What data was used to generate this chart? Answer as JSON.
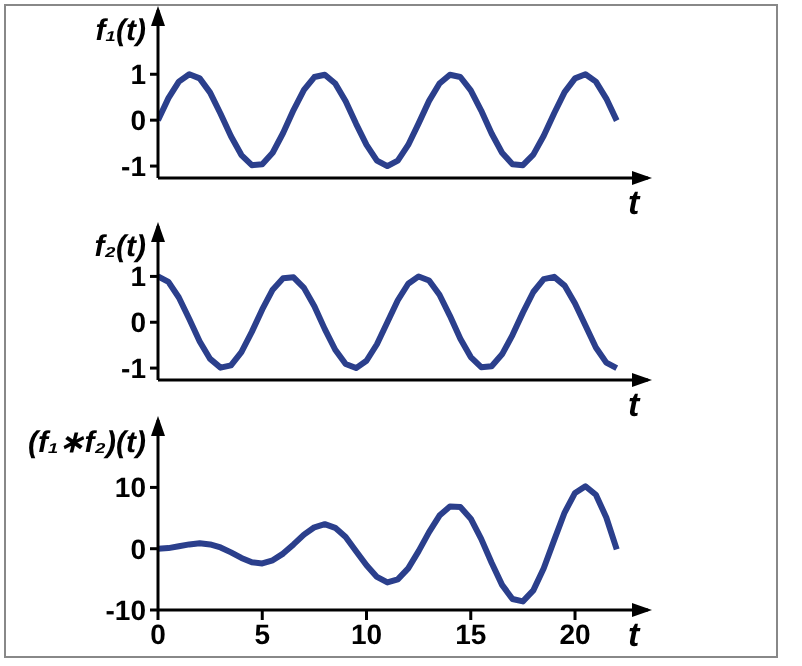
{
  "chart_data": [
    {
      "type": "line",
      "ylabel": "f₁(t)",
      "xlabel": "t",
      "tick_labels": "y",
      "marker": "none",
      "xlim": [
        0,
        23.5
      ],
      "xticks": [
        0,
        5,
        10,
        15,
        20
      ],
      "ylim": [
        -1.26,
        2.4
      ],
      "yticks": [
        -1,
        0,
        1
      ],
      "x": [
        0,
        0.5,
        1,
        1.5,
        2,
        2.5,
        3,
        3.5,
        4,
        4.5,
        5,
        5.5,
        6,
        6.5,
        7,
        7.5,
        8,
        8.5,
        9,
        9.5,
        10,
        10.5,
        11,
        11.5,
        12,
        12.5,
        13,
        13.5,
        14,
        14.5,
        15,
        15.5,
        16,
        16.5,
        17,
        17.5,
        18,
        18.5,
        19,
        19.5,
        20,
        20.5,
        21,
        21.5,
        22
      ],
      "series": [
        {
          "color": "#2b3f8c",
          "values": [
            0,
            0.48,
            0.84,
            1.0,
            0.91,
            0.6,
            0.14,
            -0.35,
            -0.76,
            -0.98,
            -0.96,
            -0.71,
            -0.28,
            0.22,
            0.66,
            0.94,
            0.99,
            0.8,
            0.41,
            -0.08,
            -0.54,
            -0.88,
            -1.0,
            -0.88,
            -0.54,
            -0.07,
            0.42,
            0.8,
            0.99,
            0.94,
            0.65,
            0.21,
            -0.29,
            -0.71,
            -0.96,
            -0.98,
            -0.75,
            -0.34,
            0.15,
            0.61,
            0.91,
            1.0,
            0.84,
            0.47,
            -0.01
          ]
        }
      ]
    },
    {
      "type": "line",
      "ylabel": "f₂(t)",
      "xlabel": "t",
      "tick_labels": "y",
      "marker": "none",
      "xlim": [
        0,
        23.5
      ],
      "xticks": [
        0,
        5,
        10,
        15,
        20
      ],
      "ylim": [
        -1.26,
        2.1
      ],
      "yticks": [
        -1,
        0,
        1
      ],
      "x": [
        0,
        0.5,
        1,
        1.5,
        2,
        2.5,
        3,
        3.5,
        4,
        4.5,
        5,
        5.5,
        6,
        6.5,
        7,
        7.5,
        8,
        8.5,
        9,
        9.5,
        10,
        10.5,
        11,
        11.5,
        12,
        12.5,
        13,
        13.5,
        14,
        14.5,
        15,
        15.5,
        16,
        16.5,
        17,
        17.5,
        18,
        18.5,
        19,
        19.5,
        20,
        20.5,
        21,
        21.5,
        22
      ],
      "series": [
        {
          "color": "#2b3f8c",
          "values": [
            1,
            0.88,
            0.54,
            0.07,
            -0.42,
            -0.8,
            -0.99,
            -0.94,
            -0.65,
            -0.21,
            0.28,
            0.71,
            0.96,
            0.98,
            0.75,
            0.35,
            -0.15,
            -0.6,
            -0.91,
            -1.0,
            -0.84,
            -0.48,
            0.0,
            0.48,
            0.84,
            1.0,
            0.91,
            0.6,
            0.14,
            -0.36,
            -0.76,
            -0.98,
            -0.96,
            -0.7,
            -0.28,
            0.21,
            0.66,
            0.94,
            0.99,
            0.8,
            0.41,
            -0.07,
            -0.55,
            -0.88,
            -1.0
          ]
        }
      ]
    },
    {
      "type": "line",
      "ylabel": "(f₁∗f₂)(t)",
      "xlabel": "t",
      "marker": "none",
      "xlim": [
        0,
        23.5
      ],
      "xticks": [
        0,
        5,
        10,
        15,
        20
      ],
      "ylim": [
        -10,
        21
      ],
      "yticks": [
        -10,
        0,
        10
      ],
      "x": [
        0,
        0.5,
        1,
        1.5,
        2,
        2.5,
        3,
        3.5,
        4,
        4.5,
        5,
        5.5,
        6,
        6.5,
        7,
        7.5,
        8,
        8.5,
        9,
        9.5,
        10,
        10.5,
        11,
        11.5,
        12,
        12.5,
        13,
        13.5,
        14,
        14.5,
        15,
        15.5,
        16,
        16.5,
        17,
        17.5,
        18,
        18.5,
        19,
        19.5,
        20,
        20.5,
        21,
        21.5,
        22
      ],
      "series": [
        {
          "color": "#2b3f8c",
          "values": [
            0,
            0.1,
            0.4,
            0.7,
            0.9,
            0.7,
            0.2,
            -0.6,
            -1.5,
            -2.2,
            -2.4,
            -1.9,
            -0.8,
            0.7,
            2.3,
            3.5,
            4.0,
            3.4,
            1.9,
            -0.4,
            -2.7,
            -4.6,
            -5.5,
            -5.0,
            -3.2,
            -0.4,
            2.7,
            5.4,
            6.9,
            6.8,
            4.9,
            1.6,
            -2.3,
            -5.9,
            -8.2,
            -8.6,
            -6.8,
            -3.2,
            1.4,
            5.9,
            9.1,
            10.2,
            8.8,
            5.1,
            -0.1
          ]
        }
      ]
    }
  ]
}
